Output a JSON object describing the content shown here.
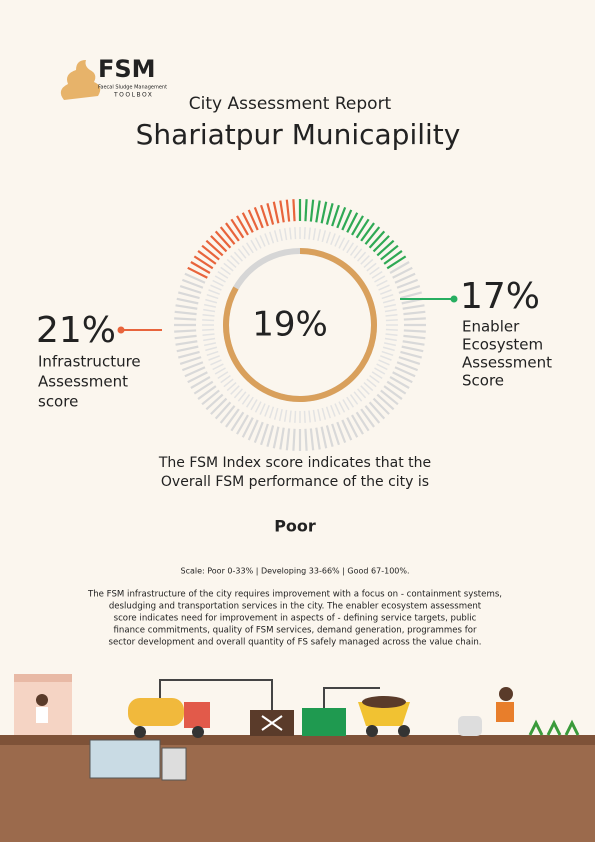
{
  "header": {
    "logo": "FSM",
    "logo_sub": "Faecal Sludge Management",
    "logo_brand": "TOOLBOX",
    "subtitle": "City Assessment Report",
    "title": "Shariatpur Municapility"
  },
  "scores": {
    "overall": "19%",
    "infrastructure": {
      "value": "21%",
      "label": [
        "Infrastructure",
        "Assessment",
        "score"
      ]
    },
    "enabler": {
      "value": "17%",
      "label": [
        "Enabler",
        "Ecosystem",
        "Assessment",
        "Score"
      ]
    }
  },
  "summary": {
    "statement": [
      "The FSM Index score indicates that the",
      "Overall FSM performance of the city is"
    ],
    "rating": "Poor",
    "scale": "Scale: Poor 0-33%  | Developing 33-66% | Good 67-100%.",
    "description": [
      "The FSM infrastructure of the city requires improvement with a focus on - containment systems,",
      "desludging and transportation services in the city. The enabler ecosystem assessment",
      "score indicates need for improvement in aspects of - defining service targets, public",
      "finance commitments, quality of FSM services, demand generation, programmes for",
      "sector development and overall quantity of FS safely managed across the value chain."
    ]
  }
}
